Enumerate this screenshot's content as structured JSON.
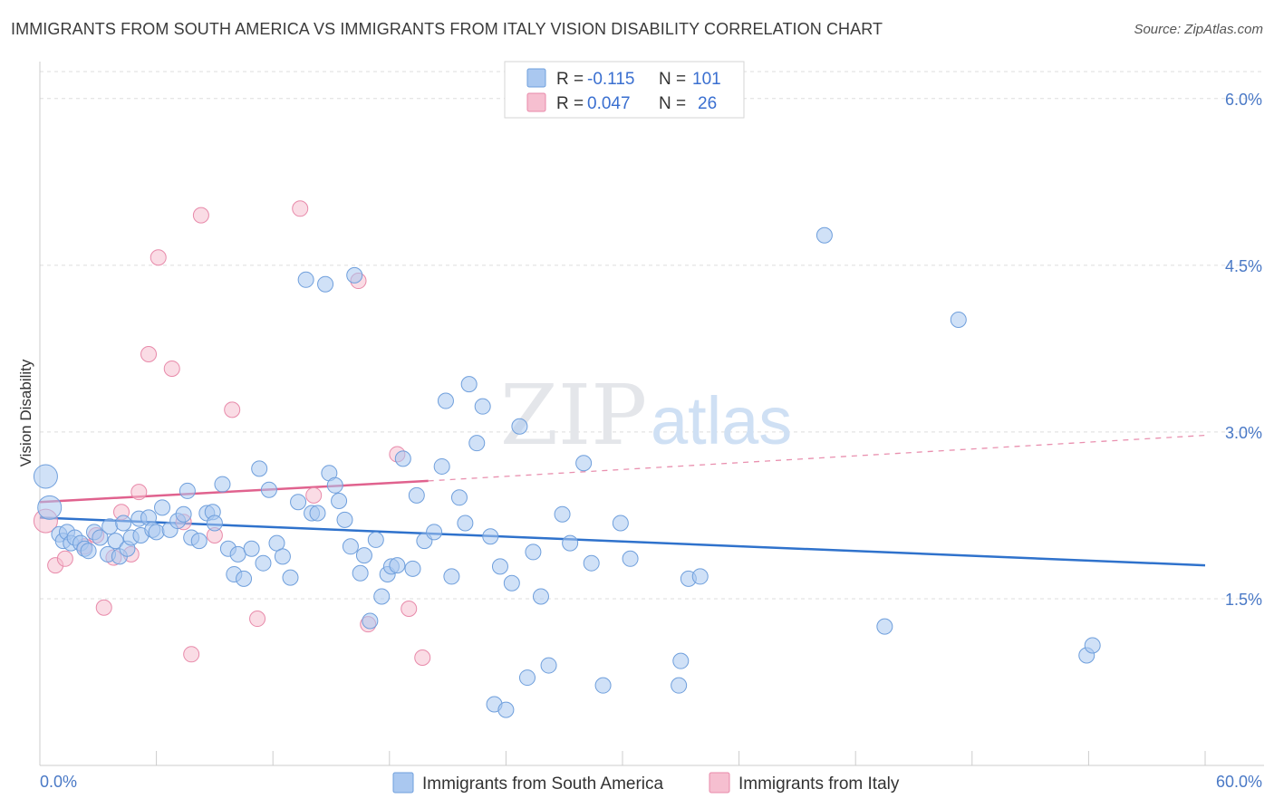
{
  "title": "IMMIGRANTS FROM SOUTH AMERICA VS IMMIGRANTS FROM ITALY VISION DISABILITY CORRELATION CHART",
  "source": "Source: ZipAtlas.com",
  "watermark": {
    "zip": "ZIP",
    "atlas": "atlas"
  },
  "colors": {
    "blue_fill": "#aac8f0",
    "blue_stroke": "#6f9fdc",
    "blue_line": "#2f72cc",
    "pink_fill": "#f6bfd0",
    "pink_stroke": "#e88aaa",
    "pink_line": "#e0628e",
    "grid": "#dddddd",
    "tick_label": "#4a79c6"
  },
  "legend": {
    "rows": [
      {
        "r_label": "R = ",
        "r_value": "-0.115",
        "n_label": "N = ",
        "n_value": "101"
      },
      {
        "r_label": "R = ",
        "r_value": "0.047",
        "n_label": "N = ",
        "n_value": "26"
      }
    ]
  },
  "chart_data": {
    "type": "scatter",
    "title": "IMMIGRANTS FROM SOUTH AMERICA VS IMMIGRANTS FROM ITALY VISION DISABILITY CORRELATION CHART",
    "xlabel": "",
    "ylabel": "Vision Disability",
    "xlim": [
      0,
      60
    ],
    "ylim": [
      0,
      6.3
    ],
    "x_tick_labels": [
      "0.0%",
      "60.0%"
    ],
    "y_ticks": [
      1.5,
      3.0,
      4.5,
      6.0
    ],
    "y_tick_labels": [
      "1.5%",
      "3.0%",
      "4.5%",
      "6.0%"
    ],
    "grid": true,
    "legend_position": "top-center",
    "series": [
      {
        "name": "Immigrants from South America",
        "color": "#aac8f0",
        "trend": {
          "x": [
            0,
            60
          ],
          "y": [
            2.23,
            1.8
          ]
        },
        "points": [
          {
            "x": 0.3,
            "y": 2.6,
            "big": true
          },
          {
            "x": 0.5,
            "y": 2.32,
            "big": true
          },
          {
            "x": 1.0,
            "y": 2.08
          },
          {
            "x": 1.2,
            "y": 2.02
          },
          {
            "x": 1.4,
            "y": 2.1
          },
          {
            "x": 1.6,
            "y": 2.0
          },
          {
            "x": 1.8,
            "y": 2.05
          },
          {
            "x": 2.1,
            "y": 2.0
          },
          {
            "x": 2.3,
            "y": 1.95
          },
          {
            "x": 2.5,
            "y": 1.93
          },
          {
            "x": 2.8,
            "y": 2.1
          },
          {
            "x": 3.1,
            "y": 2.05
          },
          {
            "x": 3.5,
            "y": 1.9
          },
          {
            "x": 3.6,
            "y": 2.15
          },
          {
            "x": 3.9,
            "y": 2.02
          },
          {
            "x": 4.1,
            "y": 1.88
          },
          {
            "x": 4.3,
            "y": 2.18
          },
          {
            "x": 4.5,
            "y": 1.95
          },
          {
            "x": 4.7,
            "y": 2.05
          },
          {
            "x": 5.1,
            "y": 2.22
          },
          {
            "x": 5.2,
            "y": 2.07
          },
          {
            "x": 5.6,
            "y": 2.23
          },
          {
            "x": 5.8,
            "y": 2.12
          },
          {
            "x": 6.0,
            "y": 2.1
          },
          {
            "x": 6.3,
            "y": 2.32
          },
          {
            "x": 6.7,
            "y": 2.12
          },
          {
            "x": 7.1,
            "y": 2.2
          },
          {
            "x": 7.4,
            "y": 2.26
          },
          {
            "x": 7.6,
            "y": 2.47
          },
          {
            "x": 7.8,
            "y": 2.05
          },
          {
            "x": 8.2,
            "y": 2.02
          },
          {
            "x": 8.6,
            "y": 2.27
          },
          {
            "x": 8.9,
            "y": 2.28
          },
          {
            "x": 9.0,
            "y": 2.18
          },
          {
            "x": 9.4,
            "y": 2.53
          },
          {
            "x": 9.7,
            "y": 1.95
          },
          {
            "x": 10.0,
            "y": 1.72
          },
          {
            "x": 10.2,
            "y": 1.9
          },
          {
            "x": 10.5,
            "y": 1.68
          },
          {
            "x": 10.9,
            "y": 1.95
          },
          {
            "x": 11.3,
            "y": 2.67
          },
          {
            "x": 11.5,
            "y": 1.82
          },
          {
            "x": 11.8,
            "y": 2.48
          },
          {
            "x": 12.2,
            "y": 2.0
          },
          {
            "x": 12.5,
            "y": 1.88
          },
          {
            "x": 12.9,
            "y": 1.69
          },
          {
            "x": 13.3,
            "y": 2.37
          },
          {
            "x": 13.7,
            "y": 4.37
          },
          {
            "x": 14.0,
            "y": 2.27
          },
          {
            "x": 14.3,
            "y": 2.27
          },
          {
            "x": 14.7,
            "y": 4.33
          },
          {
            "x": 14.9,
            "y": 2.63
          },
          {
            "x": 15.2,
            "y": 2.52
          },
          {
            "x": 15.4,
            "y": 2.38
          },
          {
            "x": 15.7,
            "y": 2.21
          },
          {
            "x": 16.0,
            "y": 1.97
          },
          {
            "x": 16.2,
            "y": 4.41
          },
          {
            "x": 16.5,
            "y": 1.73
          },
          {
            "x": 16.7,
            "y": 1.89
          },
          {
            "x": 17.0,
            "y": 1.3
          },
          {
            "x": 17.3,
            "y": 2.03
          },
          {
            "x": 17.6,
            "y": 1.52
          },
          {
            "x": 17.9,
            "y": 1.72
          },
          {
            "x": 18.1,
            "y": 1.79
          },
          {
            "x": 18.4,
            "y": 1.8
          },
          {
            "x": 18.7,
            "y": 2.76
          },
          {
            "x": 19.2,
            "y": 1.77
          },
          {
            "x": 19.4,
            "y": 2.43
          },
          {
            "x": 19.8,
            "y": 2.02
          },
          {
            "x": 20.3,
            "y": 2.1
          },
          {
            "x": 20.7,
            "y": 2.69
          },
          {
            "x": 20.9,
            "y": 3.28
          },
          {
            "x": 21.2,
            "y": 1.7
          },
          {
            "x": 21.6,
            "y": 2.41
          },
          {
            "x": 21.9,
            "y": 2.18
          },
          {
            "x": 22.1,
            "y": 3.43
          },
          {
            "x": 22.5,
            "y": 2.9
          },
          {
            "x": 22.8,
            "y": 3.23
          },
          {
            "x": 23.2,
            "y": 2.06
          },
          {
            "x": 23.4,
            "y": 0.55
          },
          {
            "x": 23.7,
            "y": 1.79
          },
          {
            "x": 24.0,
            "y": 0.5
          },
          {
            "x": 24.3,
            "y": 1.64
          },
          {
            "x": 24.7,
            "y": 3.05
          },
          {
            "x": 25.1,
            "y": 0.79
          },
          {
            "x": 25.4,
            "y": 1.92
          },
          {
            "x": 25.8,
            "y": 1.52
          },
          {
            "x": 26.2,
            "y": 0.9
          },
          {
            "x": 26.9,
            "y": 2.26
          },
          {
            "x": 27.3,
            "y": 2.0
          },
          {
            "x": 28.0,
            "y": 2.72
          },
          {
            "x": 28.4,
            "y": 1.82
          },
          {
            "x": 29.0,
            "y": 0.72
          },
          {
            "x": 29.9,
            "y": 2.18
          },
          {
            "x": 30.4,
            "y": 1.86
          },
          {
            "x": 32.9,
            "y": 0.72
          },
          {
            "x": 33.0,
            "y": 0.94
          },
          {
            "x": 33.4,
            "y": 1.68
          },
          {
            "x": 34.0,
            "y": 1.7
          },
          {
            "x": 40.4,
            "y": 4.77
          },
          {
            "x": 43.5,
            "y": 1.25
          },
          {
            "x": 47.3,
            "y": 4.01
          },
          {
            "x": 53.9,
            "y": 0.99
          },
          {
            "x": 54.2,
            "y": 1.08
          }
        ]
      },
      {
        "name": "Immigrants from Italy",
        "color": "#f6bfd0",
        "trend": {
          "x": [
            0,
            20.0
          ],
          "y": [
            2.37,
            2.56
          ]
        },
        "trend_extension": {
          "x": [
            20.0,
            60
          ],
          "y": [
            2.56,
            2.97
          ]
        },
        "points": [
          {
            "x": 0.3,
            "y": 2.2,
            "big": true
          },
          {
            "x": 0.8,
            "y": 1.8
          },
          {
            "x": 1.3,
            "y": 1.86
          },
          {
            "x": 2.3,
            "y": 1.97
          },
          {
            "x": 2.9,
            "y": 2.07
          },
          {
            "x": 3.3,
            "y": 1.42
          },
          {
            "x": 3.8,
            "y": 1.87
          },
          {
            "x": 4.2,
            "y": 2.28
          },
          {
            "x": 4.7,
            "y": 1.9
          },
          {
            "x": 5.1,
            "y": 2.46
          },
          {
            "x": 5.6,
            "y": 3.7
          },
          {
            "x": 6.1,
            "y": 4.57
          },
          {
            "x": 6.8,
            "y": 3.57
          },
          {
            "x": 7.4,
            "y": 2.19
          },
          {
            "x": 7.8,
            "y": 1.0
          },
          {
            "x": 8.3,
            "y": 4.95
          },
          {
            "x": 9.0,
            "y": 2.07
          },
          {
            "x": 9.9,
            "y": 3.2
          },
          {
            "x": 11.2,
            "y": 1.32
          },
          {
            "x": 13.4,
            "y": 5.01
          },
          {
            "x": 14.1,
            "y": 2.43
          },
          {
            "x": 16.4,
            "y": 4.36
          },
          {
            "x": 16.9,
            "y": 1.27
          },
          {
            "x": 18.4,
            "y": 2.8
          },
          {
            "x": 19.0,
            "y": 1.41
          },
          {
            "x": 19.7,
            "y": 0.97
          }
        ]
      }
    ]
  }
}
